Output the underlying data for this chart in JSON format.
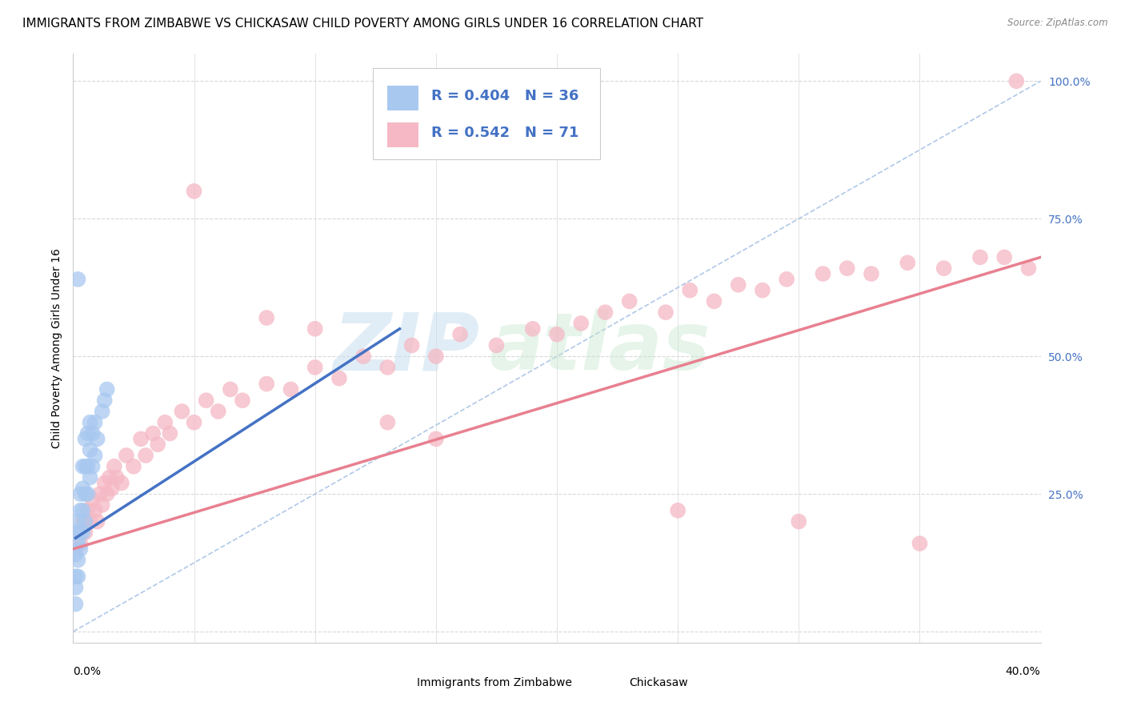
{
  "title": "IMMIGRANTS FROM ZIMBABWE VS CHICKASAW CHILD POVERTY AMONG GIRLS UNDER 16 CORRELATION CHART",
  "source": "Source: ZipAtlas.com",
  "ylabel": "Child Poverty Among Girls Under 16",
  "watermark_zip": "ZIP",
  "watermark_atlas": "atlas",
  "legend_blue_label": "Immigrants from Zimbabwe",
  "legend_pink_label": "Chickasaw",
  "legend_blue_r": "0.404",
  "legend_blue_n": "36",
  "legend_pink_r": "0.542",
  "legend_pink_n": "71",
  "blue_color": "#a8c8f0",
  "pink_color": "#f5b8c4",
  "blue_line_color": "#4472c4",
  "pink_line_color": "#e88090",
  "diag_line_color": "#b0c8e8",
  "legend_text_color": "#4472c4",
  "right_tick_color": "#4472c4",
  "xlim": [
    0.0,
    0.4
  ],
  "ylim": [
    -0.02,
    1.05
  ],
  "blue_scatter_x": [
    0.001,
    0.001,
    0.001,
    0.001,
    0.001,
    0.002,
    0.002,
    0.002,
    0.002,
    0.003,
    0.003,
    0.003,
    0.003,
    0.004,
    0.004,
    0.004,
    0.004,
    0.005,
    0.005,
    0.005,
    0.005,
    0.006,
    0.006,
    0.006,
    0.007,
    0.007,
    0.007,
    0.008,
    0.008,
    0.009,
    0.009,
    0.01,
    0.012,
    0.013,
    0.014,
    0.002
  ],
  "blue_scatter_y": [
    0.05,
    0.08,
    0.1,
    0.14,
    0.18,
    0.1,
    0.13,
    0.16,
    0.2,
    0.15,
    0.18,
    0.22,
    0.25,
    0.18,
    0.22,
    0.26,
    0.3,
    0.2,
    0.25,
    0.3,
    0.35,
    0.25,
    0.3,
    0.36,
    0.28,
    0.33,
    0.38,
    0.3,
    0.36,
    0.32,
    0.38,
    0.35,
    0.4,
    0.42,
    0.44,
    0.64
  ],
  "pink_scatter_x": [
    0.001,
    0.002,
    0.003,
    0.004,
    0.005,
    0.006,
    0.007,
    0.008,
    0.009,
    0.01,
    0.011,
    0.012,
    0.013,
    0.014,
    0.015,
    0.016,
    0.017,
    0.018,
    0.02,
    0.022,
    0.025,
    0.028,
    0.03,
    0.033,
    0.035,
    0.038,
    0.04,
    0.045,
    0.05,
    0.055,
    0.06,
    0.065,
    0.07,
    0.08,
    0.09,
    0.1,
    0.11,
    0.12,
    0.13,
    0.14,
    0.15,
    0.16,
    0.175,
    0.19,
    0.2,
    0.21,
    0.22,
    0.23,
    0.245,
    0.255,
    0.265,
    0.275,
    0.285,
    0.295,
    0.31,
    0.32,
    0.33,
    0.345,
    0.36,
    0.375,
    0.385,
    0.395,
    0.05,
    0.08,
    0.1,
    0.13,
    0.15,
    0.25,
    0.3,
    0.35,
    0.39
  ],
  "pink_scatter_y": [
    0.15,
    0.18,
    0.16,
    0.2,
    0.18,
    0.22,
    0.2,
    0.24,
    0.22,
    0.2,
    0.25,
    0.23,
    0.27,
    0.25,
    0.28,
    0.26,
    0.3,
    0.28,
    0.27,
    0.32,
    0.3,
    0.35,
    0.32,
    0.36,
    0.34,
    0.38,
    0.36,
    0.4,
    0.38,
    0.42,
    0.4,
    0.44,
    0.42,
    0.45,
    0.44,
    0.48,
    0.46,
    0.5,
    0.48,
    0.52,
    0.5,
    0.54,
    0.52,
    0.55,
    0.54,
    0.56,
    0.58,
    0.6,
    0.58,
    0.62,
    0.6,
    0.63,
    0.62,
    0.64,
    0.65,
    0.66,
    0.65,
    0.67,
    0.66,
    0.68,
    0.68,
    0.66,
    0.8,
    0.57,
    0.55,
    0.38,
    0.35,
    0.22,
    0.2,
    0.16,
    1.0
  ],
  "blue_trend_x": [
    0.001,
    0.135
  ],
  "blue_trend_y": [
    0.17,
    0.55
  ],
  "pink_trend_x": [
    0.0,
    0.4
  ],
  "pink_trend_y": [
    0.15,
    0.68
  ],
  "diag_trend_x": [
    0.0,
    0.4
  ],
  "diag_trend_y": [
    0.0,
    1.0
  ],
  "background_color": "#ffffff",
  "grid_color": "#d8d8d8",
  "title_fontsize": 11,
  "label_fontsize": 9,
  "tick_fontsize": 9,
  "legend_fontsize": 13
}
